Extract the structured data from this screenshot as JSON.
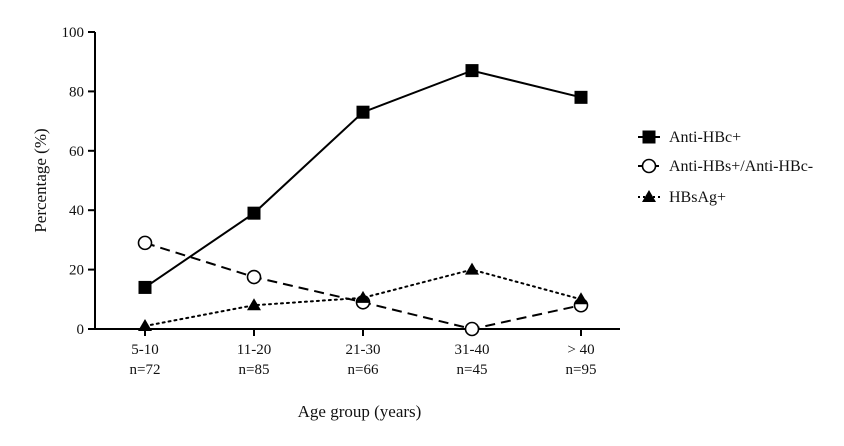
{
  "chart_data": {
    "type": "line",
    "xlabel": "Age group (years)",
    "ylabel": "Percentage (%)",
    "ylim": [
      0,
      100
    ],
    "yticks": [
      0,
      20,
      40,
      60,
      80,
      100
    ],
    "categories": [
      "5-10",
      "11-20",
      "21-30",
      "31-40",
      "> 40"
    ],
    "category_subtitles": [
      "n=72",
      "n=85",
      "n=66",
      "n=45",
      "n=95"
    ],
    "grid": false,
    "legend_position": "right",
    "series": [
      {
        "name": "Anti-HBc+",
        "values": [
          14,
          39,
          73,
          87,
          78
        ],
        "marker": "filled-square",
        "line_style": "solid",
        "color": "#000000"
      },
      {
        "name": "Anti-HBs+/Anti-HBc-",
        "values": [
          29,
          17.5,
          9,
          0,
          8
        ],
        "marker": "open-circle",
        "line_style": "dashed",
        "color": "#000000"
      },
      {
        "name": "HBsAg+",
        "values": [
          1,
          8,
          10.5,
          20,
          10
        ],
        "marker": "filled-triangle",
        "line_style": "dotted",
        "color": "#000000"
      }
    ]
  }
}
